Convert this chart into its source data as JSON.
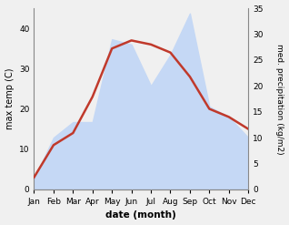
{
  "months": [
    "Jan",
    "Feb",
    "Mar",
    "Apr",
    "May",
    "Jun",
    "Jul",
    "Aug",
    "Sep",
    "Oct",
    "Nov",
    "Dec"
  ],
  "max_temp": [
    3,
    11,
    14,
    23,
    35,
    37,
    36,
    34,
    28,
    20,
    18,
    15
  ],
  "precipitation": [
    2,
    10,
    13,
    13,
    29,
    28,
    20,
    26,
    34,
    16,
    14,
    10
  ],
  "temp_color": "#c0392b",
  "precip_fill_color": "#c5d8f5",
  "precip_edge_color": "#aec6e8",
  "temp_ylim": [
    0,
    45
  ],
  "precip_ylim": [
    0,
    35
  ],
  "temp_yticks": [
    0,
    10,
    20,
    30,
    40
  ],
  "precip_yticks": [
    0,
    5,
    10,
    15,
    20,
    25,
    30,
    35
  ],
  "xlabel": "date (month)",
  "ylabel_left": "max temp (C)",
  "ylabel_right": "med. precipitation (kg/m2)",
  "bg_color": "#f0f0f0"
}
